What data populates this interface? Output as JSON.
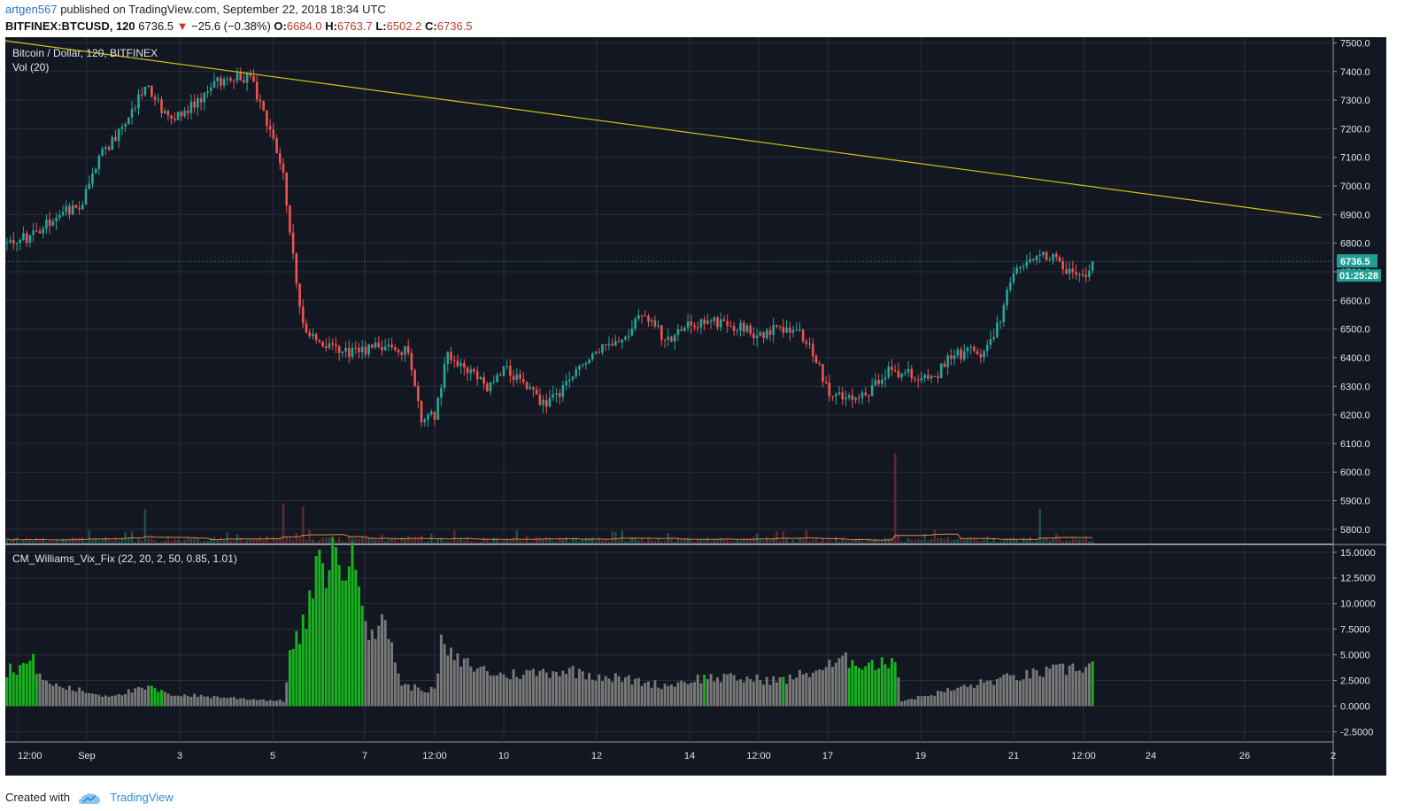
{
  "header": {
    "author": "artgen567",
    "published": "published on TradingView.com, September 22, 2018 18:34 UTC"
  },
  "symbol_line": {
    "symbol": "BITFINEX:BTCUSD, 120",
    "last": "6736.5",
    "arrow": "▼",
    "change": "−25.6 (−0.38%)",
    "o_label": "O:",
    "o": "6684.0",
    "h_label": "H:",
    "h": "6763.7",
    "l_label": "L:",
    "l": "6502.2",
    "c_label": "C:",
    "c": "6736.5"
  },
  "chart_data": [
    {
      "type": "candlestick",
      "title": "Bitcoin / Dollar, 120, BITFINEX",
      "sub_label": "Vol (20)",
      "xlabel": "",
      "ylabel": "",
      "ylim": [
        5750,
        7520
      ],
      "y_ticks": [
        "7500.0",
        "7400.0",
        "7300.0",
        "7200.0",
        "7100.0",
        "7000.0",
        "6900.0",
        "6800.0",
        "6700.0",
        "6600.0",
        "6500.0",
        "6400.0",
        "6300.0",
        "6200.0",
        "6100.0",
        "6000.0",
        "5900.0",
        "5800.0"
      ],
      "x_ticks": [
        "12:00",
        "Sep",
        "3",
        "5",
        "7",
        "12:00",
        "10",
        "12",
        "14",
        "12:00",
        "17",
        "19",
        "21",
        "12:00",
        "24",
        "26",
        "2"
      ],
      "close_path": [
        [
          0,
          6800
        ],
        [
          6,
          6820
        ],
        [
          12,
          6870
        ],
        [
          18,
          6920
        ],
        [
          22,
          6920
        ],
        [
          28,
          7100
        ],
        [
          36,
          7220
        ],
        [
          42,
          7360
        ],
        [
          50,
          7220
        ],
        [
          58,
          7300
        ],
        [
          66,
          7380
        ],
        [
          74,
          7380
        ],
        [
          84,
          7050
        ],
        [
          86,
          6830
        ],
        [
          90,
          6500
        ],
        [
          96,
          6450
        ],
        [
          102,
          6420
        ],
        [
          108,
          6420
        ],
        [
          114,
          6440
        ],
        [
          122,
          6420
        ],
        [
          126,
          6180
        ],
        [
          130,
          6200
        ],
        [
          134,
          6420
        ],
        [
          140,
          6350
        ],
        [
          146,
          6300
        ],
        [
          152,
          6360
        ],
        [
          158,
          6300
        ],
        [
          164,
          6230
        ],
        [
          170,
          6300
        ],
        [
          176,
          6400
        ],
        [
          182,
          6450
        ],
        [
          188,
          6480
        ],
        [
          194,
          6560
        ],
        [
          200,
          6460
        ],
        [
          206,
          6510
        ],
        [
          214,
          6530
        ],
        [
          222,
          6510
        ],
        [
          228,
          6480
        ],
        [
          234,
          6500
        ],
        [
          240,
          6500
        ],
        [
          244,
          6450
        ],
        [
          250,
          6270
        ],
        [
          256,
          6260
        ],
        [
          262,
          6280
        ],
        [
          268,
          6350
        ],
        [
          274,
          6350
        ],
        [
          282,
          6320
        ],
        [
          286,
          6400
        ],
        [
          292,
          6420
        ],
        [
          296,
          6410
        ],
        [
          302,
          6530
        ],
        [
          306,
          6710
        ],
        [
          312,
          6750
        ],
        [
          318,
          6760
        ],
        [
          322,
          6700
        ],
        [
          328,
          6690
        ],
        [
          330,
          6736.5
        ]
      ],
      "last_price": 6736.5,
      "last_price_label": "6736.5",
      "countdown": "01:25:28",
      "trendline": [
        [
          -8,
          7520
        ],
        [
          400,
          6890
        ]
      ],
      "volume_spikes": [
        [
          42,
          5870
        ],
        [
          84,
          5890
        ],
        [
          90,
          5880
        ],
        [
          270,
          6065
        ],
        [
          314,
          5870
        ]
      ],
      "vol_ma": "orange line"
    },
    {
      "type": "bar",
      "title": "CM_Williams_Vix_Fix (22, 20, 2, 50, 0.85, 1.01)",
      "ylim": [
        -3.5,
        15.5
      ],
      "y_ticks": [
        "15.0000",
        "12.5000",
        "10.0000",
        "7.5000",
        "5.0000",
        "2.5000",
        "0.0000",
        "-2.5000"
      ],
      "green_threshold_note": "",
      "series_profile": [
        [
          0,
          3.5
        ],
        [
          8,
          4.3
        ],
        [
          12,
          2.2
        ],
        [
          30,
          1.0
        ],
        [
          44,
          1.8
        ],
        [
          48,
          1.2
        ],
        [
          84,
          0.5
        ],
        [
          86,
          5.0
        ],
        [
          90,
          7.5
        ],
        [
          94,
          12.5
        ],
        [
          98,
          14.5
        ],
        [
          104,
          14.0
        ],
        [
          108,
          12.0
        ],
        [
          110,
          8.0
        ],
        [
          116,
          7.5
        ],
        [
          120,
          2.0
        ],
        [
          130,
          1.5
        ],
        [
          132,
          6.0
        ],
        [
          136,
          4.5
        ],
        [
          150,
          3.0
        ],
        [
          170,
          3.5
        ],
        [
          200,
          2.0
        ],
        [
          212,
          2.8
        ],
        [
          236,
          2.5
        ],
        [
          256,
          4.5
        ],
        [
          266,
          4.0
        ],
        [
          270,
          5.0
        ],
        [
          272,
          0.5
        ],
        [
          300,
          2.5
        ],
        [
          330,
          4.0
        ]
      ],
      "green_ranges": [
        [
          0,
          9
        ],
        [
          86,
          108
        ],
        [
          44,
          47
        ],
        [
          212,
          212
        ],
        [
          236,
          236
        ],
        [
          256,
          270
        ],
        [
          270,
          270
        ],
        [
          330,
          330
        ]
      ]
    }
  ],
  "footer": {
    "created_with": "Created with",
    "brand": "TradingView"
  },
  "colors": {
    "background": "#131722",
    "grid": "#2a2e39",
    "up": "#26a69a",
    "down": "#ef5350",
    "trendline": "#d4c313",
    "last_price": "#1e9f95",
    "vol_ma": "#e08a3c",
    "vix_green": "#19b21f",
    "vix_gray": "#787878",
    "axis_text": "#e0e3eb"
  }
}
